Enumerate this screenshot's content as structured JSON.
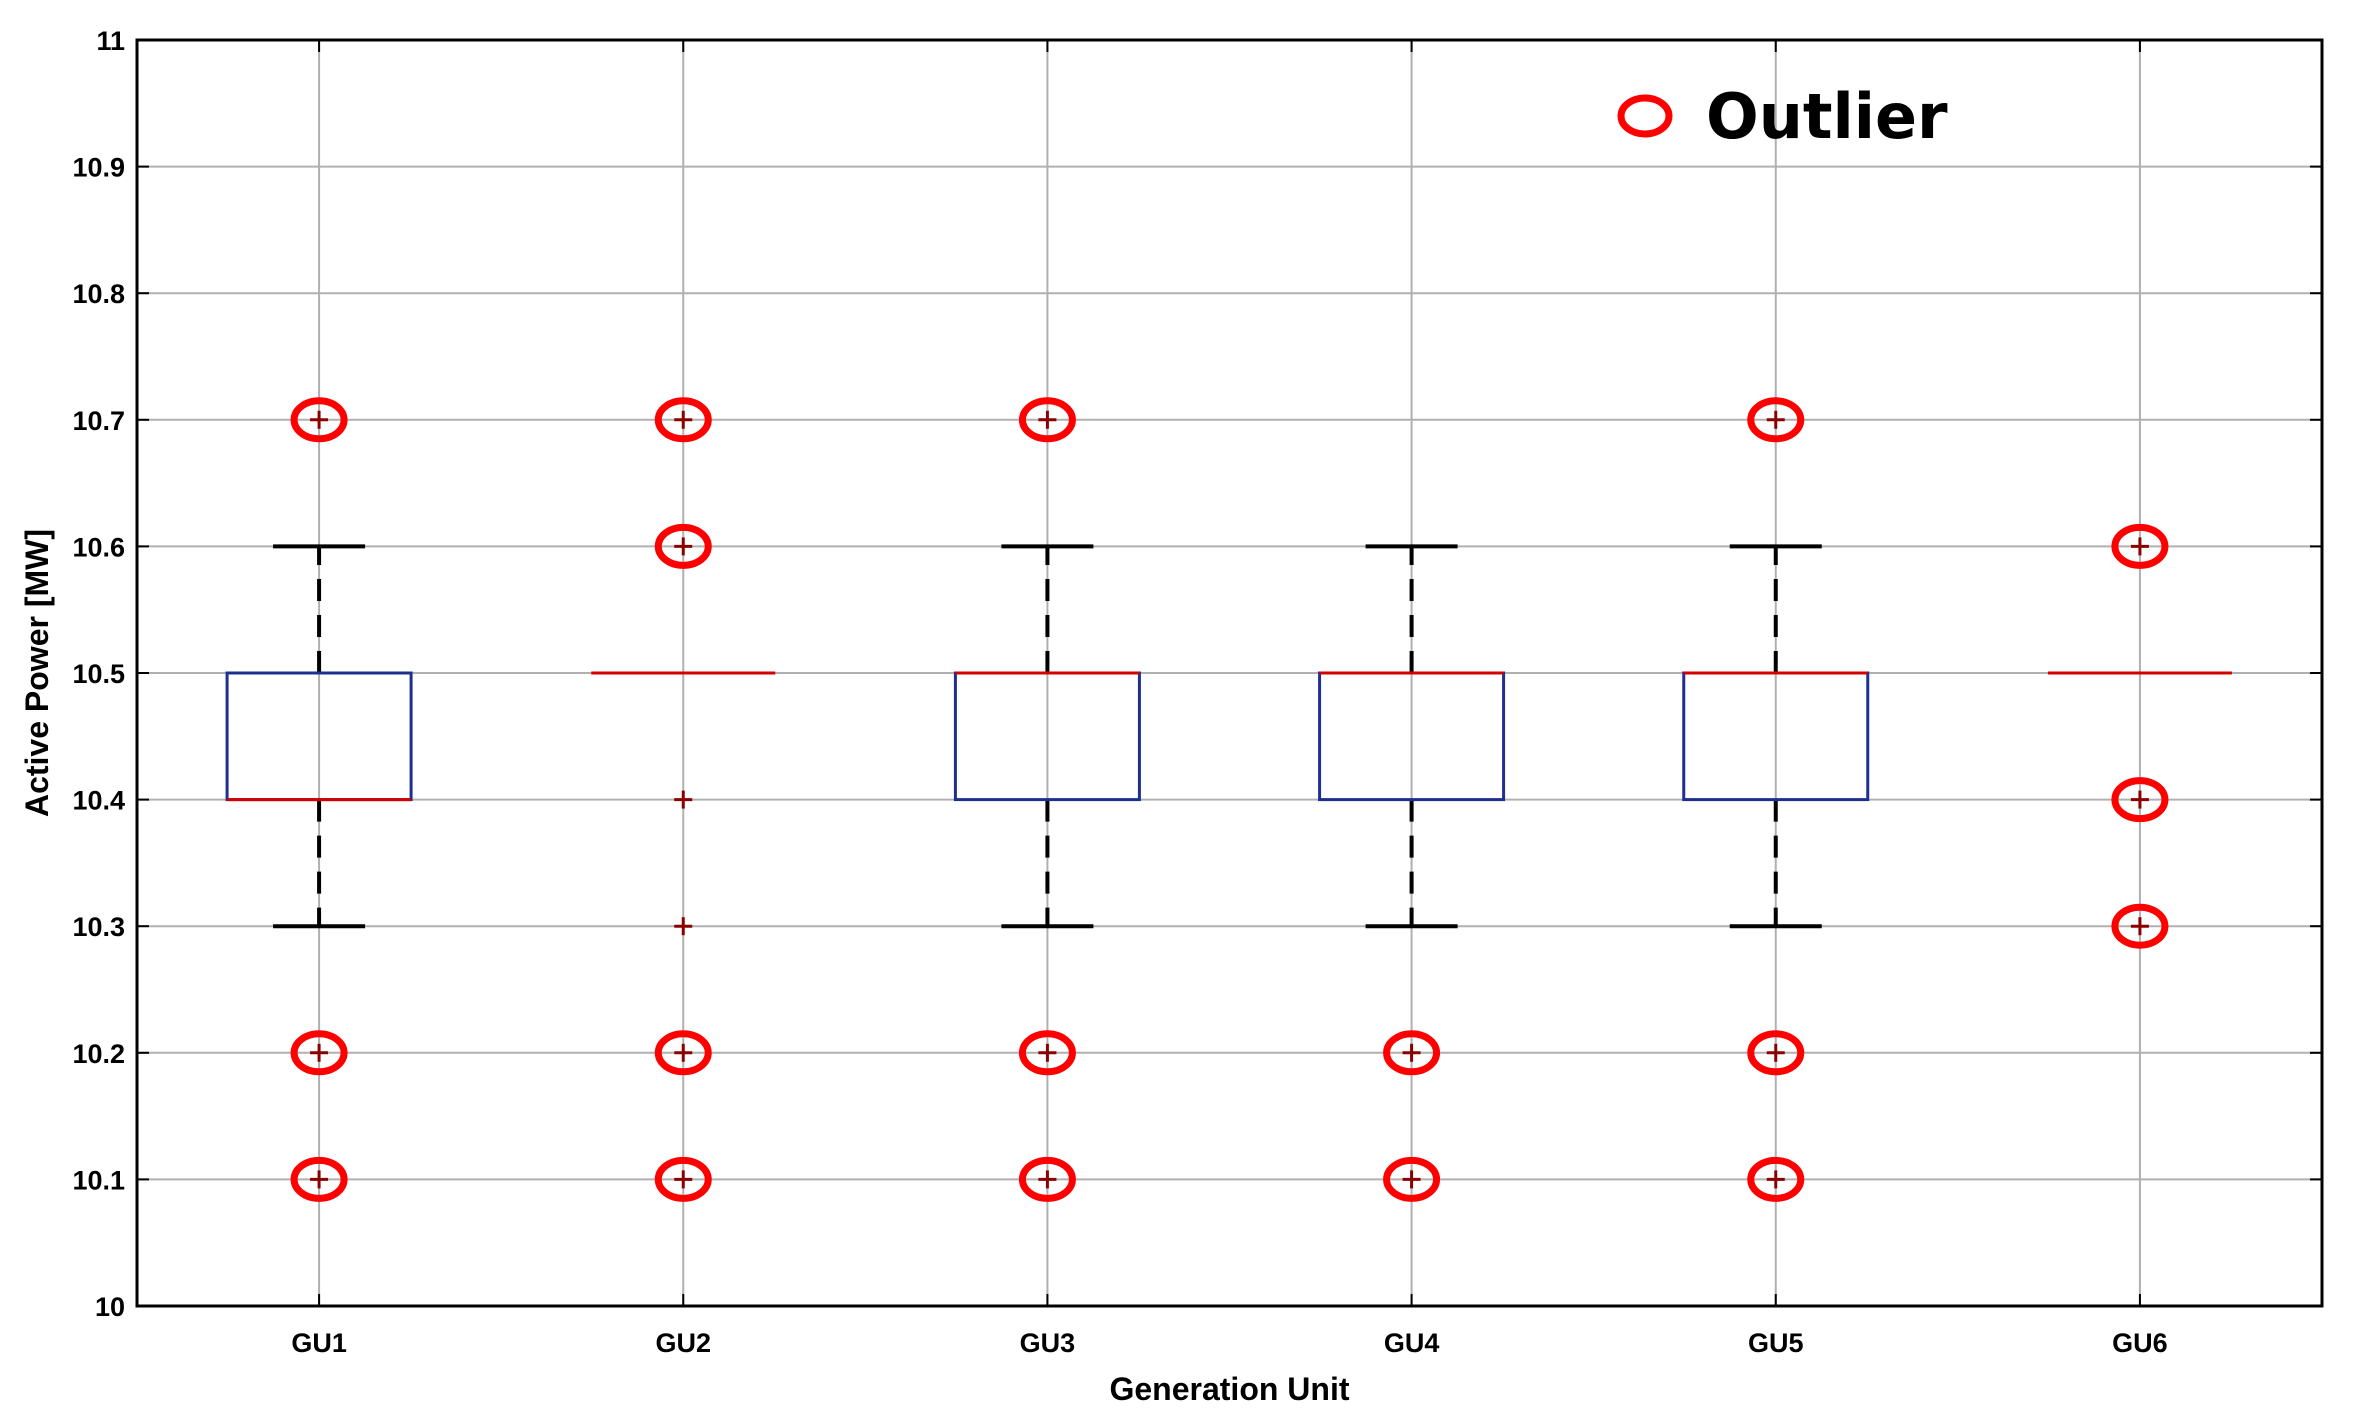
{
  "chart_data": {
    "type": "boxplot",
    "xlabel": "Generation Unit",
    "ylabel": "Active Power [MW]",
    "ylim": [
      10,
      11
    ],
    "yticks": [
      "10",
      "10.1",
      "10.2",
      "10.3",
      "10.4",
      "10.5",
      "10.6",
      "10.7",
      "10.8",
      "10.9",
      "11"
    ],
    "grid": true,
    "legend": {
      "label": "Outlier",
      "position": "top-right"
    },
    "categories": [
      "GU1",
      "GU2",
      "GU3",
      "GU4",
      "GU5",
      "GU6"
    ],
    "boxes": [
      {
        "name": "GU1",
        "whisker_low": 10.3,
        "q1": 10.4,
        "median": 10.4,
        "q3": 10.5,
        "whisker_high": 10.6,
        "outliers": [
          10.7,
          10.2,
          10.1
        ],
        "circled": [
          10.7,
          10.2,
          10.1
        ]
      },
      {
        "name": "GU2",
        "whisker_low": 10.5,
        "q1": 10.5,
        "median": 10.5,
        "q3": 10.5,
        "whisker_high": 10.5,
        "outliers": [
          10.7,
          10.6,
          10.4,
          10.3,
          10.2,
          10.1
        ],
        "circled": [
          10.7,
          10.6,
          10.2,
          10.1
        ]
      },
      {
        "name": "GU3",
        "whisker_low": 10.3,
        "q1": 10.4,
        "median": 10.5,
        "q3": 10.5,
        "whisker_high": 10.6,
        "outliers": [
          10.7,
          10.2,
          10.1
        ],
        "circled": [
          10.7,
          10.2,
          10.1
        ]
      },
      {
        "name": "GU4",
        "whisker_low": 10.3,
        "q1": 10.4,
        "median": 10.5,
        "q3": 10.5,
        "whisker_high": 10.6,
        "outliers": [
          10.2,
          10.1
        ],
        "circled": [
          10.2,
          10.1
        ]
      },
      {
        "name": "GU5",
        "whisker_low": 10.3,
        "q1": 10.4,
        "median": 10.5,
        "q3": 10.5,
        "whisker_high": 10.6,
        "outliers": [
          10.7,
          10.2,
          10.1
        ],
        "circled": [
          10.7,
          10.2,
          10.1
        ]
      },
      {
        "name": "GU6",
        "whisker_low": 10.5,
        "q1": 10.5,
        "median": 10.5,
        "q3": 10.5,
        "whisker_high": 10.5,
        "outliers": [
          10.6,
          10.4,
          10.3
        ],
        "circled": [
          10.6,
          10.4,
          10.3
        ]
      }
    ],
    "colors": {
      "box": "#1f2f8f",
      "median": "#d40000",
      "outlier_plus": "#8b0000",
      "outlier_circle": "#ff0000",
      "whisker": "#000000",
      "grid": "#b0b0b0"
    }
  }
}
